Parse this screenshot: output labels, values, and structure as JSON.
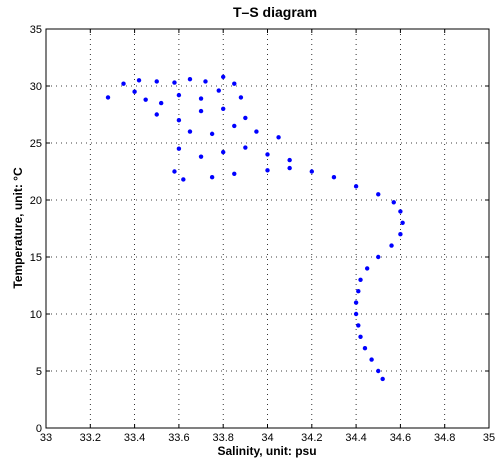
{
  "chart_data": {
    "type": "scatter",
    "title": "T–S diagram",
    "xlabel": "Salinity, unit: psu",
    "ylabel": "Temperature, unit: °C",
    "xlim": [
      33,
      35
    ],
    "ylim": [
      0,
      35
    ],
    "xticks": [
      "33",
      "33.2",
      "33.4",
      "33.6",
      "33.8",
      "34",
      "34.2",
      "34.4",
      "34.6",
      "34.8",
      "35"
    ],
    "yticks": [
      "0",
      "5",
      "10",
      "15",
      "20",
      "25",
      "30",
      "35"
    ],
    "grid": true,
    "marker_color": "#0000ff",
    "series": [
      {
        "points": [
          [
            33.35,
            30.2
          ],
          [
            33.42,
            30.5
          ],
          [
            33.5,
            30.4
          ],
          [
            33.58,
            30.3
          ],
          [
            33.65,
            30.6
          ],
          [
            33.72,
            30.4
          ],
          [
            33.8,
            30.8
          ],
          [
            33.85,
            30.2
          ],
          [
            33.28,
            29.0
          ],
          [
            33.4,
            29.5
          ],
          [
            33.45,
            28.8
          ],
          [
            33.52,
            28.5
          ],
          [
            33.6,
            29.2
          ],
          [
            33.7,
            28.9
          ],
          [
            33.78,
            29.6
          ],
          [
            33.88,
            29.0
          ],
          [
            33.5,
            27.5
          ],
          [
            33.6,
            27.0
          ],
          [
            33.7,
            27.8
          ],
          [
            33.8,
            28.0
          ],
          [
            33.9,
            27.2
          ],
          [
            33.65,
            26.0
          ],
          [
            33.75,
            25.8
          ],
          [
            33.85,
            26.5
          ],
          [
            33.95,
            26.0
          ],
          [
            34.05,
            25.5
          ],
          [
            33.6,
            24.5
          ],
          [
            33.7,
            23.8
          ],
          [
            33.8,
            24.2
          ],
          [
            33.9,
            24.6
          ],
          [
            34.0,
            24.0
          ],
          [
            34.1,
            23.5
          ],
          [
            33.58,
            22.5
          ],
          [
            33.62,
            21.8
          ],
          [
            33.75,
            22.0
          ],
          [
            33.85,
            22.3
          ],
          [
            34.0,
            22.6
          ],
          [
            34.1,
            22.8
          ],
          [
            34.2,
            22.5
          ],
          [
            34.3,
            22.0
          ],
          [
            34.4,
            21.2
          ],
          [
            34.5,
            20.5
          ],
          [
            34.57,
            19.8
          ],
          [
            34.6,
            19.0
          ],
          [
            34.61,
            18.0
          ],
          [
            34.6,
            17.0
          ],
          [
            34.56,
            16.0
          ],
          [
            34.5,
            15.0
          ],
          [
            34.45,
            14.0
          ],
          [
            34.42,
            13.0
          ],
          [
            34.41,
            12.0
          ],
          [
            34.4,
            11.0
          ],
          [
            34.4,
            10.0
          ],
          [
            34.41,
            9.0
          ],
          [
            34.42,
            8.0
          ],
          [
            34.44,
            7.0
          ],
          [
            34.47,
            6.0
          ],
          [
            34.5,
            5.0
          ],
          [
            34.52,
            4.3
          ]
        ]
      }
    ]
  }
}
